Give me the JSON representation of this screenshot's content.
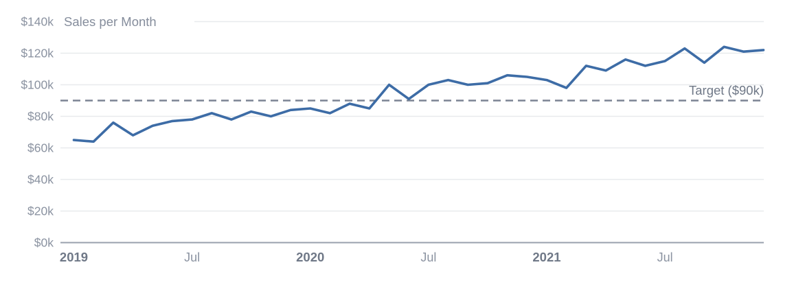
{
  "chart_data": {
    "type": "line",
    "title": "Sales per Month",
    "unit": "USD thousands",
    "series": [
      {
        "name": "Sales per Month",
        "start_month": "Jan 2019",
        "end_month": "Dec 2021",
        "values": [
          65,
          64,
          76,
          68,
          74,
          77,
          78,
          82,
          78,
          83,
          80,
          84,
          85,
          82,
          88,
          85,
          100,
          91,
          100,
          103,
          100,
          101,
          106,
          105,
          103,
          98,
          112,
          109,
          116,
          112,
          115,
          123,
          114,
          124,
          121,
          122
        ]
      }
    ],
    "target": {
      "value": 90,
      "label": "Target ($90k)",
      "line_style": "dashed"
    },
    "y_axis": {
      "min": 0,
      "max": 140,
      "tick_step": 20,
      "tick_labels": [
        "$0k",
        "$20k",
        "$40k",
        "$60k",
        "$80k",
        "$100k",
        "$120k",
        "$140k"
      ]
    },
    "x_axis": {
      "tick_labels": [
        {
          "label": "2019",
          "month_index": 0,
          "bold": true
        },
        {
          "label": "Jul",
          "month_index": 6,
          "bold": false
        },
        {
          "label": "2020",
          "month_index": 12,
          "bold": true
        },
        {
          "label": "Jul",
          "month_index": 18,
          "bold": false
        },
        {
          "label": "2021",
          "month_index": 24,
          "bold": true
        },
        {
          "label": "Jul",
          "month_index": 30,
          "bold": false
        }
      ]
    },
    "legend": "none",
    "grid": "horizontal",
    "colors": {
      "line": "#3d6ca6",
      "grid": "#e8eaed",
      "axis": "#98a1ad",
      "target_line": "#7b8494",
      "tick_label": "#8b93a1",
      "year_label": "#6f7887",
      "title": "#858d9c",
      "target_label": "#6f7887",
      "background": "#ffffff"
    }
  }
}
